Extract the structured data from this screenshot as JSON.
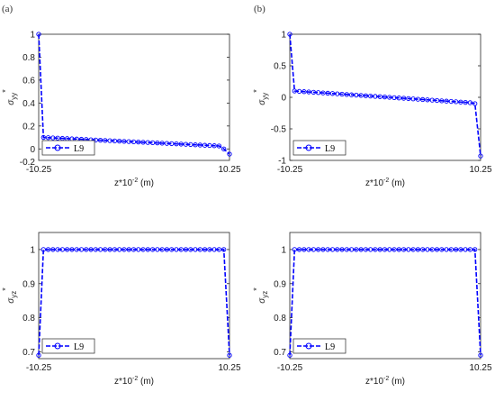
{
  "panel_labels": [
    "(a)",
    "(b)"
  ],
  "chart_data": [
    {
      "type": "line",
      "panel": "(a)",
      "xlabel_base": "z*10",
      "xlabel_exp": "-2",
      "xlabel_unit": "(m)",
      "ylabel_main": "σ",
      "ylabel_sub": "yy",
      "ylabel_sup": "*",
      "xlim": [
        -10.25,
        10.25
      ],
      "ylim": [
        -0.1,
        1.0
      ],
      "xticks": [
        "-10.25",
        "10.25"
      ],
      "yticks": [
        -0.2,
        0,
        0.2,
        0.4,
        0.6,
        0.8,
        1
      ],
      "ytick_labels": [
        "-0.2",
        "0",
        "0.2",
        "0.4",
        "0.6",
        "0.8",
        "1"
      ],
      "legend": "top-left-bottom",
      "series": [
        {
          "name": "L9",
          "color": "#0000ff",
          "x": [
            -10.25,
            -9.74,
            -9.23,
            -8.72,
            -8.21,
            -7.7,
            -7.19,
            -6.68,
            -6.17,
            -5.66,
            -5.15,
            -4.64,
            -4.13,
            -3.62,
            -3.11,
            -2.6,
            -2.09,
            -1.58,
            -1.07,
            -0.56,
            -0.05,
            0.46,
            0.97,
            1.48,
            1.99,
            2.5,
            3.01,
            3.52,
            4.03,
            4.54,
            5.05,
            5.56,
            6.07,
            6.58,
            7.09,
            7.6,
            8.11,
            8.62,
            9.13,
            9.64,
            10.25
          ],
          "y": [
            1.0,
            0.1,
            0.098,
            0.096,
            0.094,
            0.092,
            0.09,
            0.088,
            0.086,
            0.084,
            0.082,
            0.08,
            0.078,
            0.076,
            0.074,
            0.072,
            0.07,
            0.068,
            0.066,
            0.064,
            0.062,
            0.06,
            0.058,
            0.056,
            0.054,
            0.052,
            0.05,
            0.048,
            0.046,
            0.044,
            0.042,
            0.04,
            0.038,
            0.036,
            0.034,
            0.032,
            0.03,
            0.028,
            0.026,
            0.0,
            -0.045
          ]
        }
      ]
    },
    {
      "type": "line",
      "panel": "(b)",
      "xlabel_base": "z*10",
      "xlabel_exp": "-2",
      "xlabel_unit": "(m)",
      "ylabel_main": "σ",
      "ylabel_sub": "yy",
      "ylabel_sup": "*",
      "xlim": [
        -10.25,
        10.25
      ],
      "ylim": [
        -1.0,
        1.0
      ],
      "xticks": [
        "-10.25",
        "10.25"
      ],
      "yticks": [
        -1,
        -0.5,
        0,
        0.5,
        1
      ],
      "ytick_labels": [
        "-1",
        "-0.5",
        "0",
        "0.5",
        "1"
      ],
      "legend": "bottom-left",
      "series": [
        {
          "name": "L9",
          "color": "#0000ff",
          "x": [
            -10.25,
            -9.74,
            -9.23,
            -8.72,
            -8.21,
            -7.7,
            -7.19,
            -6.68,
            -6.17,
            -5.66,
            -5.15,
            -4.64,
            -4.13,
            -3.62,
            -3.11,
            -2.6,
            -2.09,
            -1.58,
            -1.07,
            -0.56,
            -0.05,
            0.46,
            0.97,
            1.48,
            1.99,
            2.5,
            3.01,
            3.52,
            4.03,
            4.54,
            5.05,
            5.56,
            6.07,
            6.58,
            7.09,
            7.6,
            8.11,
            8.62,
            9.13,
            9.64,
            10.25
          ],
          "y": [
            1.0,
            0.1,
            0.095,
            0.09,
            0.085,
            0.08,
            0.075,
            0.07,
            0.065,
            0.06,
            0.055,
            0.05,
            0.045,
            0.04,
            0.035,
            0.03,
            0.025,
            0.02,
            0.015,
            0.01,
            0.005,
            0.0,
            -0.005,
            -0.01,
            -0.015,
            -0.02,
            -0.025,
            -0.03,
            -0.035,
            -0.04,
            -0.045,
            -0.05,
            -0.055,
            -0.06,
            -0.065,
            -0.07,
            -0.075,
            -0.08,
            -0.085,
            -0.1,
            -0.93
          ]
        }
      ]
    },
    {
      "type": "line",
      "panel": "(a)-bottom",
      "xlabel_base": "z*10",
      "xlabel_exp": "-2",
      "xlabel_unit": "(m)",
      "ylabel_main": "σ",
      "ylabel_sub": "yz",
      "ylabel_sup": "*",
      "xlim": [
        -10.25,
        10.25
      ],
      "ylim": [
        0.68,
        1.05
      ],
      "xticks": [
        "-10.25",
        "10.25"
      ],
      "yticks": [
        0.7,
        0.8,
        0.9,
        1
      ],
      "ytick_labels": [
        "0.7",
        "0.8",
        "0.9",
        "1"
      ],
      "legend": "bottom-left",
      "series": [
        {
          "name": "L9",
          "color": "#0000ff",
          "x": [
            -10.25,
            -9.74,
            -9.23,
            -8.72,
            -8.21,
            -7.7,
            -7.19,
            -6.68,
            -6.17,
            -5.66,
            -5.15,
            -4.64,
            -4.13,
            -3.62,
            -3.11,
            -2.6,
            -2.09,
            -1.58,
            -1.07,
            -0.56,
            -0.05,
            0.46,
            0.97,
            1.48,
            1.99,
            2.5,
            3.01,
            3.52,
            4.03,
            4.54,
            5.05,
            5.56,
            6.07,
            6.58,
            7.09,
            7.6,
            8.11,
            8.62,
            9.13,
            9.64,
            10.25
          ],
          "y": [
            0.69,
            1.0,
            1.0,
            1.0,
            1.0,
            1.0,
            1.0,
            1.0,
            1.0,
            1.0,
            1.0,
            1.0,
            1.0,
            1.0,
            1.0,
            1.0,
            1.0,
            1.0,
            1.0,
            1.0,
            1.0,
            1.0,
            1.0,
            1.0,
            1.0,
            1.0,
            1.0,
            1.0,
            1.0,
            1.0,
            1.0,
            1.0,
            1.0,
            1.0,
            1.0,
            1.0,
            1.0,
            1.0,
            1.0,
            1.0,
            0.69
          ]
        }
      ]
    },
    {
      "type": "line",
      "panel": "(b)-bottom",
      "xlabel_base": "z*10",
      "xlabel_exp": "-2",
      "xlabel_unit": "(m)",
      "ylabel_main": "σ",
      "ylabel_sub": "yz",
      "ylabel_sup": "*",
      "xlim": [
        -10.25,
        10.25
      ],
      "ylim": [
        0.68,
        1.05
      ],
      "xticks": [
        "-10.25",
        "10.25"
      ],
      "yticks": [
        0.7,
        0.8,
        0.9,
        1
      ],
      "ytick_labels": [
        "0.7",
        "0.8",
        "0.9",
        "1"
      ],
      "legend": "bottom-left",
      "series": [
        {
          "name": "L9",
          "color": "#0000ff",
          "x": [
            -10.25,
            -9.74,
            -9.23,
            -8.72,
            -8.21,
            -7.7,
            -7.19,
            -6.68,
            -6.17,
            -5.66,
            -5.15,
            -4.64,
            -4.13,
            -3.62,
            -3.11,
            -2.6,
            -2.09,
            -1.58,
            -1.07,
            -0.56,
            -0.05,
            0.46,
            0.97,
            1.48,
            1.99,
            2.5,
            3.01,
            3.52,
            4.03,
            4.54,
            5.05,
            5.56,
            6.07,
            6.58,
            7.09,
            7.6,
            8.11,
            8.62,
            9.13,
            9.64,
            10.25
          ],
          "y": [
            0.69,
            1.0,
            1.0,
            1.0,
            1.0,
            1.0,
            1.0,
            1.0,
            1.0,
            1.0,
            1.0,
            1.0,
            1.0,
            1.0,
            1.0,
            1.0,
            1.0,
            1.0,
            1.0,
            1.0,
            1.0,
            1.0,
            1.0,
            1.0,
            1.0,
            1.0,
            1.0,
            1.0,
            1.0,
            1.0,
            1.0,
            1.0,
            1.0,
            1.0,
            1.0,
            1.0,
            1.0,
            1.0,
            1.0,
            1.0,
            0.69
          ]
        }
      ]
    }
  ]
}
